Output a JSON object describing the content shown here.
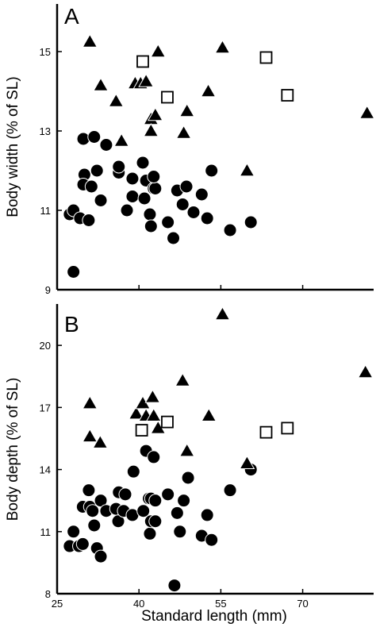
{
  "chart_data": [
    {
      "type": "scatter",
      "panel_label": "A",
      "xlabel": "",
      "ylabel": "Body width (% of SL)",
      "xlim": [
        25,
        83
      ],
      "ylim": [
        9,
        16.2
      ],
      "x_ticks": [
        25,
        40,
        55,
        70
      ],
      "y_ticks": [
        9,
        11,
        13,
        15
      ],
      "show_x_tick_labels": false,
      "grid": false,
      "series": [
        {
          "marker": "circle",
          "points": [
            [
              28.0,
              9.45
            ],
            [
              27.3,
              10.9
            ],
            [
              28.0,
              11.0
            ],
            [
              29.2,
              10.8
            ],
            [
              30.8,
              10.75
            ],
            [
              30.0,
              11.9
            ],
            [
              29.8,
              11.65
            ],
            [
              31.3,
              11.6
            ],
            [
              32.3,
              12.0
            ],
            [
              33.0,
              11.25
            ],
            [
              29.8,
              12.8
            ],
            [
              31.8,
              12.85
            ],
            [
              34.0,
              12.65
            ],
            [
              36.3,
              11.95
            ],
            [
              36.3,
              12.1
            ],
            [
              37.8,
              11.0
            ],
            [
              38.8,
              11.35
            ],
            [
              38.8,
              11.8
            ],
            [
              40.7,
              12.2
            ],
            [
              41.0,
              11.3
            ],
            [
              41.3,
              11.75
            ],
            [
              42.0,
              10.9
            ],
            [
              42.2,
              10.6
            ],
            [
              42.7,
              11.55
            ],
            [
              43.0,
              11.55
            ],
            [
              42.7,
              11.85
            ],
            [
              45.3,
              10.7
            ],
            [
              46.3,
              10.3
            ],
            [
              47.0,
              11.5
            ],
            [
              48.0,
              11.15
            ],
            [
              48.7,
              11.6
            ],
            [
              50.0,
              10.95
            ],
            [
              51.5,
              11.4
            ],
            [
              52.5,
              10.8
            ],
            [
              53.3,
              12.0
            ],
            [
              56.7,
              10.5
            ],
            [
              60.5,
              10.7
            ]
          ]
        },
        {
          "marker": "triangle",
          "points": [
            [
              31.0,
              15.25
            ],
            [
              33.0,
              14.15
            ],
            [
              35.8,
              13.75
            ],
            [
              36.8,
              12.75
            ],
            [
              39.3,
              14.2
            ],
            [
              40.3,
              14.2
            ],
            [
              41.3,
              14.25
            ],
            [
              42.2,
              13.3
            ],
            [
              42.2,
              13.0
            ],
            [
              43.0,
              13.4
            ],
            [
              43.5,
              15.0
            ],
            [
              48.2,
              12.95
            ],
            [
              48.8,
              13.5
            ],
            [
              52.7,
              14.0
            ],
            [
              55.3,
              15.1
            ],
            [
              59.8,
              12.0
            ],
            [
              81.8,
              13.45
            ]
          ]
        },
        {
          "marker": "square",
          "points": [
            [
              40.7,
              14.75
            ],
            [
              45.2,
              13.85
            ],
            [
              63.3,
              14.85
            ],
            [
              67.2,
              13.9
            ]
          ]
        }
      ]
    },
    {
      "type": "scatter",
      "panel_label": "B",
      "xlabel": "Standard length (mm)",
      "ylabel": "Body depth (% of SL)",
      "xlim": [
        25,
        83
      ],
      "ylim": [
        8,
        22
      ],
      "x_ticks": [
        25,
        40,
        55,
        70
      ],
      "y_ticks": [
        8,
        11,
        14,
        17,
        20
      ],
      "show_x_tick_labels": true,
      "grid": false,
      "series": [
        {
          "marker": "circle",
          "points": [
            [
              27.3,
              10.3
            ],
            [
              28.0,
              11.0
            ],
            [
              29.0,
              10.3
            ],
            [
              29.7,
              10.4
            ],
            [
              29.7,
              12.2
            ],
            [
              30.8,
              13.0
            ],
            [
              31.0,
              12.2
            ],
            [
              31.5,
              12.0
            ],
            [
              31.8,
              11.3
            ],
            [
              32.3,
              10.2
            ],
            [
              33.0,
              9.8
            ],
            [
              33.0,
              12.5
            ],
            [
              34.0,
              12.0
            ],
            [
              35.8,
              12.1
            ],
            [
              36.2,
              11.5
            ],
            [
              36.3,
              12.9
            ],
            [
              37.2,
              12.0
            ],
            [
              37.5,
              12.8
            ],
            [
              38.8,
              11.8
            ],
            [
              39.0,
              13.9
            ],
            [
              40.8,
              12.0
            ],
            [
              41.3,
              14.9
            ],
            [
              41.8,
              12.6
            ],
            [
              42.0,
              10.9
            ],
            [
              42.2,
              11.5
            ],
            [
              42.2,
              12.6
            ],
            [
              42.7,
              14.6
            ],
            [
              43.0,
              12.5
            ],
            [
              43.0,
              11.5
            ],
            [
              45.3,
              12.8
            ],
            [
              46.5,
              8.4
            ],
            [
              47.0,
              11.9
            ],
            [
              47.5,
              11.0
            ],
            [
              48.2,
              12.5
            ],
            [
              49.0,
              13.6
            ],
            [
              51.5,
              10.8
            ],
            [
              52.5,
              11.8
            ],
            [
              53.3,
              10.6
            ],
            [
              56.7,
              13.0
            ],
            [
              60.5,
              14.0
            ]
          ]
        },
        {
          "marker": "triangle",
          "points": [
            [
              31.0,
              17.2
            ],
            [
              31.0,
              15.6
            ],
            [
              32.9,
              15.3
            ],
            [
              39.5,
              16.7
            ],
            [
              40.7,
              17.2
            ],
            [
              41.3,
              16.6
            ],
            [
              42.5,
              17.5
            ],
            [
              42.7,
              16.6
            ],
            [
              43.5,
              16.0
            ],
            [
              48.0,
              18.3
            ],
            [
              48.8,
              14.9
            ],
            [
              52.8,
              16.6
            ],
            [
              55.3,
              21.5
            ],
            [
              59.8,
              14.3
            ],
            [
              81.5,
              18.7
            ]
          ]
        },
        {
          "marker": "square",
          "points": [
            [
              40.5,
              15.9
            ],
            [
              45.2,
              16.3
            ],
            [
              63.3,
              15.8
            ],
            [
              67.2,
              16.0
            ]
          ]
        }
      ]
    }
  ]
}
